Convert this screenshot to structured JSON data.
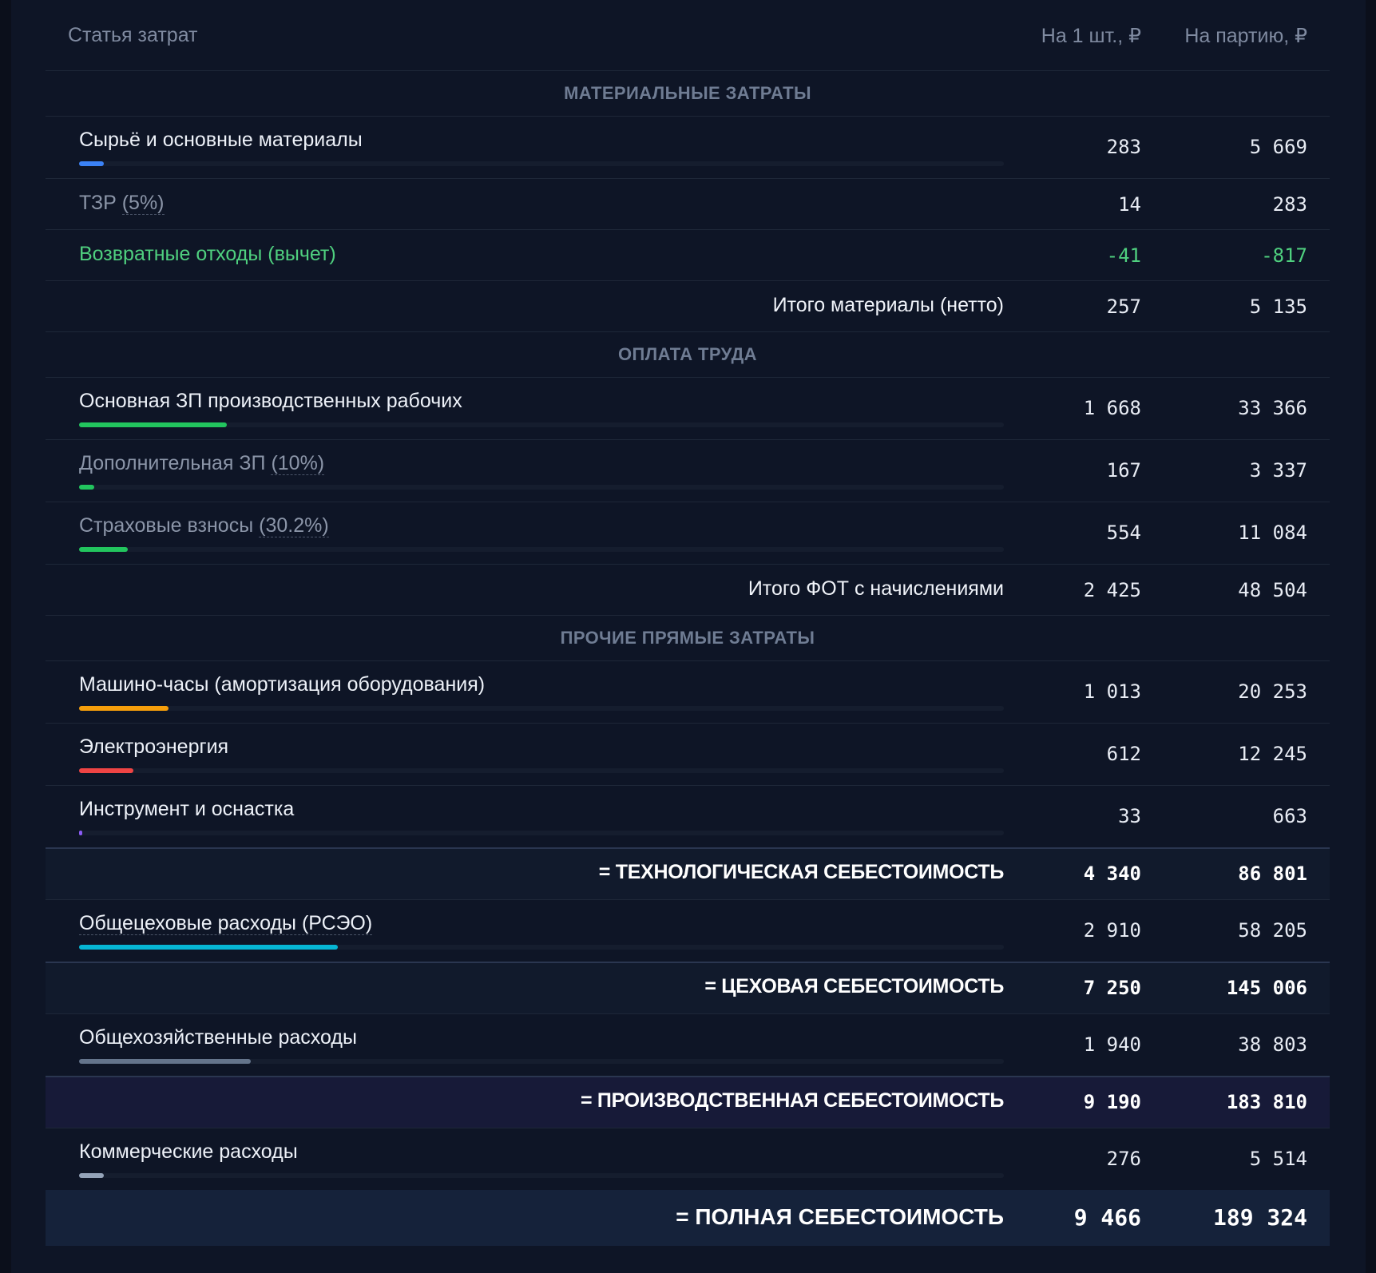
{
  "header": {
    "name": "Статья затрат",
    "unit": "На 1 шт., ₽",
    "batch": "На партию, ₽"
  },
  "sections": {
    "materials": "МАТЕРИАЛЬНЫЕ ЗАТРАТЫ",
    "labor": "ОПЛАТА ТРУДА",
    "other": "ПРОЧИЕ ПРЯМЫЕ ЗАТРАТЫ"
  },
  "rows": {
    "raw": {
      "name": "Сырьё и основные материалы",
      "unit": "283",
      "batch": "5 669",
      "bar_color": "#3b82f6",
      "share": 0.027
    },
    "tzr": {
      "name": "ТЗР",
      "pct": "(5%)",
      "unit": "14",
      "batch": "283"
    },
    "waste": {
      "name": "Возвратные отходы (вычет)",
      "unit": "-41",
      "batch": "-817"
    },
    "mat_total": {
      "label": "Итого материалы (нетто)",
      "unit": "257",
      "batch": "5 135"
    },
    "wage": {
      "name": "Основная ЗП производственных рабочих",
      "unit": "1 668",
      "batch": "33 366",
      "bar_color": "#22c55e",
      "share": 0.16
    },
    "add_wage": {
      "name": "Дополнительная ЗП",
      "pct": "(10%)",
      "unit": "167",
      "batch": "3 337",
      "bar_color": "#22c55e",
      "share": 0.016
    },
    "insurance": {
      "name": "Страховые взносы",
      "pct": "(30.2%)",
      "unit": "554",
      "batch": "11 084",
      "bar_color": "#22c55e",
      "share": 0.053
    },
    "fot_total": {
      "label": "Итого ФОТ с начислениями",
      "unit": "2 425",
      "batch": "48 504"
    },
    "machine": {
      "name": "Машино-часы (амортизация оборудования)",
      "unit": "1 013",
      "batch": "20 253",
      "bar_color": "#f59e0b",
      "share": 0.097
    },
    "power": {
      "name": "Электроэнергия",
      "unit": "612",
      "batch": "12 245",
      "bar_color": "#ef4444",
      "share": 0.059
    },
    "tools": {
      "name": "Инструмент и оснастка",
      "unit": "33",
      "batch": "663",
      "bar_color": "#8b5cf6",
      "share": 0.003
    },
    "tech_cost": {
      "label": "= ТЕХНОЛОГИЧЕСКАЯ СЕБЕСТОИМОСТЬ",
      "unit": "4 340",
      "batch": "86 801"
    },
    "shop_exp": {
      "name": "Общецеховые расходы (РСЭО)",
      "unit": "2 910",
      "batch": "58 205",
      "bar_color": "#06b6d4",
      "share": 0.28
    },
    "shop_cost": {
      "label": "= ЦЕХОВАЯ СЕБЕСТОИМОСТЬ",
      "unit": "7 250",
      "batch": "145 006"
    },
    "general": {
      "name": "Общехозяйственные расходы",
      "unit": "1 940",
      "batch": "38 803",
      "bar_color": "#64748b",
      "share": 0.186
    },
    "prod_cost": {
      "label": "= ПРОИЗВОДСТВЕННАЯ СЕБЕСТОИМОСТЬ",
      "unit": "9 190",
      "batch": "183 810"
    },
    "commercial": {
      "name": "Коммерческие расходы",
      "unit": "276",
      "batch": "5 514",
      "bar_color": "#94a3b8",
      "share": 0.027
    },
    "full_cost": {
      "label": "= ПОЛНАЯ СЕБЕСТОИМОСТЬ",
      "unit": "9 466",
      "batch": "189 324"
    }
  }
}
